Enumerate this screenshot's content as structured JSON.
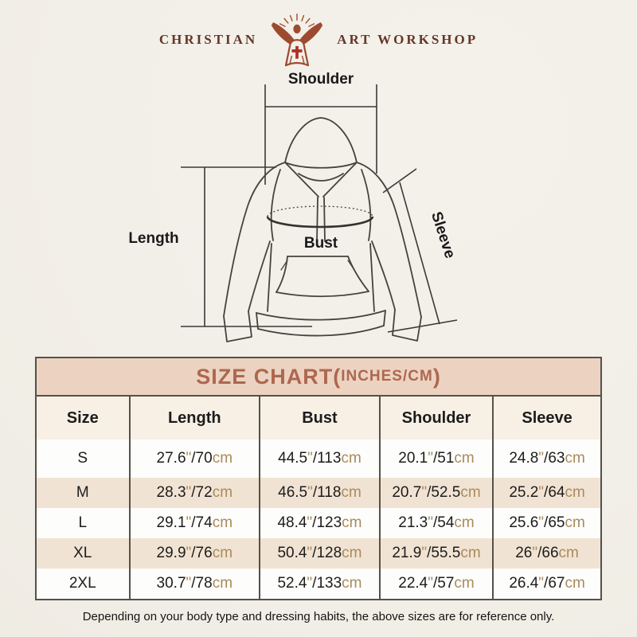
{
  "logo": {
    "brand_left": "CHRISTIAN",
    "brand_right": "ART WORKSHOP",
    "figure_icon": "jesus-open-arms-rays-icon"
  },
  "diagram": {
    "shoulder_label": "Shoulder",
    "length_label": "Length",
    "bust_label": "Bust",
    "sleeve_label": "Sleeve"
  },
  "size_chart": {
    "title_prefix": "SIZE CHART(",
    "title_units": "INCHES/CM",
    "title_suffix": ")",
    "columns": [
      "Size",
      "Length",
      "Bust",
      "Shoulder",
      "Sleeve"
    ],
    "inch_mark": "\"",
    "separator": "/",
    "cm_label": "cm",
    "rows": [
      {
        "size": "S",
        "values": [
          [
            "27.6",
            "70"
          ],
          [
            "44.5",
            "113"
          ],
          [
            "20.1",
            "51"
          ],
          [
            "24.8",
            "63"
          ]
        ]
      },
      {
        "size": "M",
        "values": [
          [
            "28.3",
            "72"
          ],
          [
            "46.5",
            "118"
          ],
          [
            "20.7",
            "52.5"
          ],
          [
            "25.2",
            "64"
          ]
        ]
      },
      {
        "size": "L",
        "values": [
          [
            "29.1",
            "74"
          ],
          [
            "48.4",
            "123"
          ],
          [
            "21.3",
            "54"
          ],
          [
            "25.6",
            "65"
          ]
        ]
      },
      {
        "size": "XL",
        "values": [
          [
            "29.9",
            "76"
          ],
          [
            "50.4",
            "128"
          ],
          [
            "21.9",
            "55.5"
          ],
          [
            "26",
            "66"
          ]
        ]
      },
      {
        "size": "2XL",
        "values": [
          [
            "30.7",
            "78"
          ],
          [
            "52.4",
            "133"
          ],
          [
            "22.4",
            "57"
          ],
          [
            "26.4",
            "67"
          ]
        ]
      }
    ]
  },
  "footer": {
    "note": "Depending on your body type and dressing habits, the above sizes are for reference only."
  },
  "colors": {
    "accent_title": "#ae6750",
    "band_bg": "#ecd3c1",
    "row_alt_bg": "#f1e3d3",
    "header_row_bg": "#f8f0e5",
    "unit_text": "#a98b5c",
    "line_art": "#45423c",
    "logo_brand": "#643627",
    "logo_figure": "#9d4b30",
    "cross_red": "#b03024",
    "table_border": "#55504a",
    "page_bg": "#f2efe8"
  }
}
